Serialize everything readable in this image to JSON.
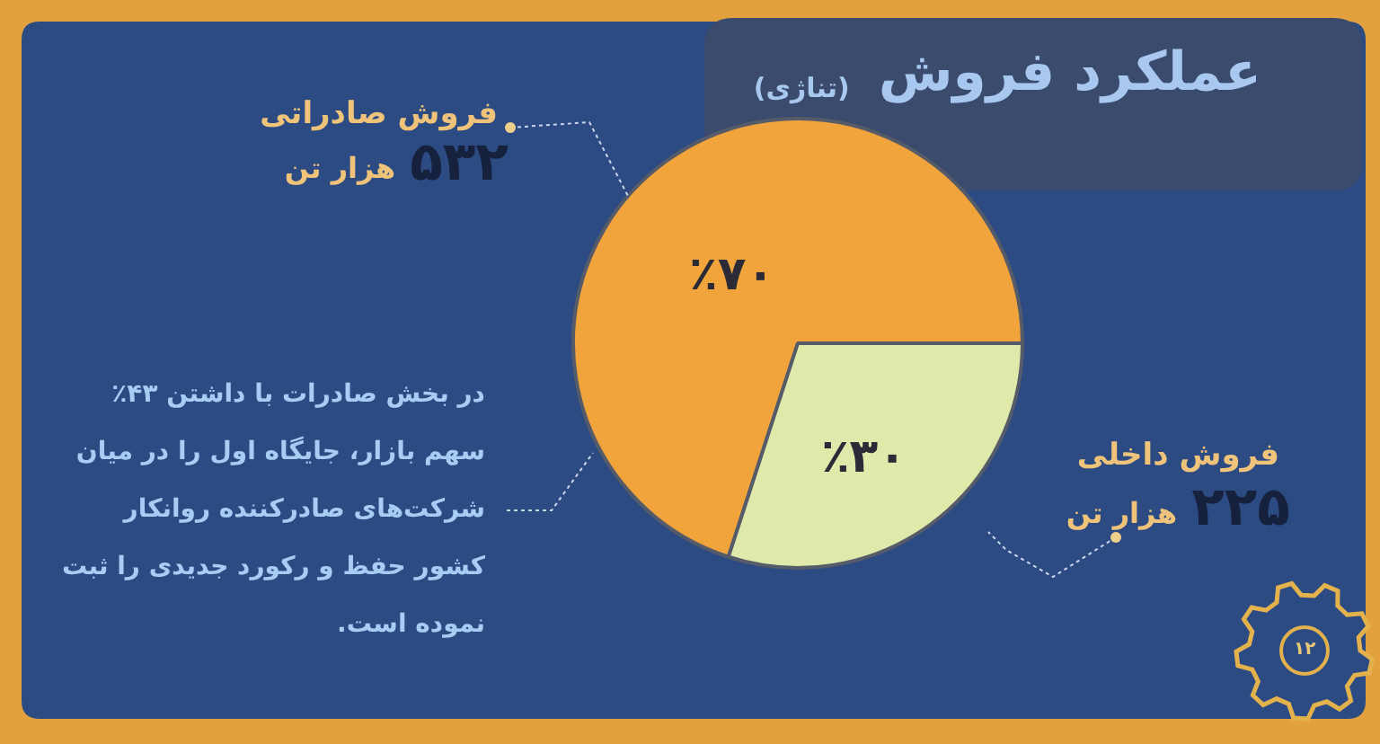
{
  "chart_data": {
    "type": "pie",
    "title": "عملکرد فروش",
    "subtitle": "(تناژی)",
    "categories": [
      "فروش صادراتی",
      "فروش داخلی"
    ],
    "values": [
      70,
      30
    ],
    "colors": [
      "#f2a43c",
      "#dfe9a9"
    ],
    "value_labels": [
      "٪۷۰",
      "٪۳۰"
    ],
    "annotations": [
      "۵۳۲ هزار تن",
      "۲۲۵ هزار تن",
      "در بخش صادرات با داشتن ۴۳٪ سهم بازار، جایگاه اول را در میان شرکت‌های صادرکننده روانکار کشور حفظ و رکورد جدیدی را ثبت نموده است.",
      "۱۲"
    ]
  }
}
